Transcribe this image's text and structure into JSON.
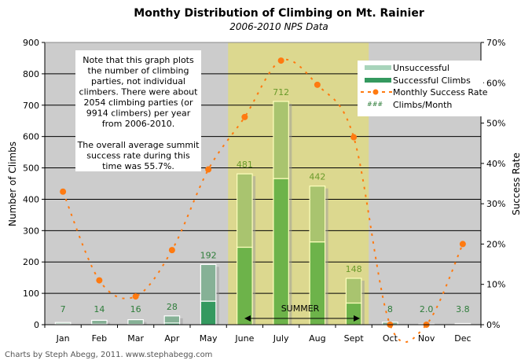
{
  "chart_data": {
    "type": "bar",
    "title": "Monthy Distribution of Climbing on Mt. Rainier",
    "subtitle": "2006-2010 NPS Data",
    "xlabel": "",
    "ylabel": "Number of Climbs",
    "y2label": "Success Rate",
    "ylim": [
      0,
      900
    ],
    "y2lim": [
      0,
      70
    ],
    "yticks": [
      "0",
      "100",
      "200",
      "300",
      "400",
      "500",
      "600",
      "700",
      "800",
      "900"
    ],
    "y2ticks": [
      "0%",
      "10%",
      "20%",
      "30%",
      "40%",
      "50%",
      "60%",
      "70%"
    ],
    "grid": true,
    "categories": [
      "Jan",
      "Feb",
      "Mar",
      "Apr",
      "May",
      "June",
      "July",
      "Aug",
      "Sept",
      "Oct",
      "Nov",
      "Dec"
    ],
    "series": [
      {
        "name": "Unsuccessful",
        "type": "stacked-bar",
        "values": [
          4.7,
          12.4,
          14.9,
          22.8,
          117,
          234,
          246,
          178,
          79,
          8,
          2.0,
          3.0
        ]
      },
      {
        "name": "Successful Climbs",
        "type": "stacked-bar",
        "values": [
          2.3,
          1.6,
          1.1,
          5.2,
          75,
          247,
          466,
          264,
          69,
          0,
          0,
          0.8
        ]
      },
      {
        "name": "Monthly Success Rate",
        "type": "line",
        "axis": "right",
        "values": [
          33,
          11,
          7,
          18.5,
          38.5,
          51.5,
          65.5,
          59.5,
          46.5,
          0,
          0,
          20
        ]
      },
      {
        "name": "Climbs/Month",
        "type": "label",
        "values": [
          "7",
          "14",
          "16",
          "28",
          "192",
          "481",
          "712",
          "442",
          "148",
          "8",
          "2.0",
          "3.8"
        ]
      }
    ],
    "legend": {
      "position": "top-right",
      "entries": [
        "Unsuccessful",
        "Successful Climbs",
        "Monthly Success Rate",
        "Climbs/Month"
      ]
    },
    "annotations": {
      "summer_label": "SUMMER",
      "summer_range": [
        "June",
        "Sept"
      ],
      "note_lines": [
        "Note that this graph plots",
        "the number of  climbing",
        "parties, not individual",
        "climbers. There were about",
        "2054 climbing parties (or",
        "9914 climbers) per year",
        "from 2006-2010.",
        "",
        "The overall average summit",
        "success rate during this",
        "time was 55.7%."
      ]
    },
    "credit": "Charts by Steph Abegg, 2011. www.stephabegg.com"
  },
  "colors": {
    "plot_bg": "#cccccc",
    "summer_bg": "#dcd88f",
    "unsuccessful": "#86b196",
    "successful": "#34995f",
    "summer_unsuccessful": "#a9c46f",
    "summer_successful": "#6db34a",
    "success_rate": "#ff7a10",
    "label": "#2e7d3a"
  }
}
